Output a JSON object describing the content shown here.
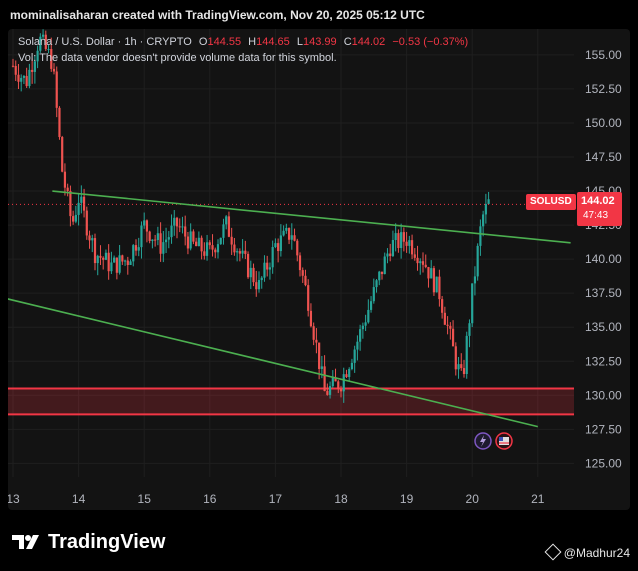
{
  "header": {
    "text": "mominalisaharan created with TradingView.com, Nov 20, 2025 05:12 UTC"
  },
  "legend": {
    "symbol": "Solana / U.S. Dollar · 1h · CRYPTO",
    "o_label": "O",
    "o_val": "144.55",
    "h_label": "H",
    "h_val": "144.65",
    "l_label": "L",
    "l_val": "143.99",
    "c_label": "C",
    "c_val": "144.02",
    "change": "−0.53 (−0.37%)",
    "volume_note": "Vol: The data vendor doesn't provide volume data for this symbol."
  },
  "price_label": {
    "symbol": "SOLUSD",
    "price": "144.02",
    "countdown": "47:43"
  },
  "brand": {
    "name": "TradingView"
  },
  "author": {
    "name": "@Madhur24"
  },
  "colors": {
    "up": "#26a69a",
    "down": "#ef5350",
    "trend": "#4caf50",
    "zone": "#f23645",
    "bg": "#131313",
    "grid": "#1f1f1f"
  },
  "chart_data": {
    "type": "candlestick",
    "symbol": "SOLUSD",
    "interval": "1h",
    "x_ticks": [
      "13",
      "14",
      "15",
      "16",
      "17",
      "18",
      "19",
      "20",
      "21"
    ],
    "y_ticks": [
      "155.00",
      "152.50",
      "150.00",
      "147.50",
      "145.00",
      "142.50",
      "140.00",
      "137.50",
      "135.00",
      "132.50",
      "130.00",
      "127.50",
      "125.00"
    ],
    "ylim": [
      124.0,
      156.9
    ],
    "xlim": [
      13.0,
      21.5
    ],
    "ohlc": {
      "open": 144.55,
      "high": 144.65,
      "low": 143.99,
      "close": 144.02
    },
    "last_price": 144.02,
    "approx_closes": [
      [
        13.0,
        154.2
      ],
      [
        13.2,
        153.0
      ],
      [
        13.4,
        156.2
      ],
      [
        13.6,
        154.5
      ],
      [
        13.75,
        146.5
      ],
      [
        13.9,
        142.5
      ],
      [
        14.0,
        144.5
      ],
      [
        14.25,
        140.5
      ],
      [
        14.5,
        139.5
      ],
      [
        14.75,
        140.0
      ],
      [
        15.0,
        142.5
      ],
      [
        15.25,
        141.0
      ],
      [
        15.5,
        142.5
      ],
      [
        15.75,
        141.0
      ],
      [
        16.0,
        140.5
      ],
      [
        16.25,
        142.5
      ],
      [
        16.5,
        140.0
      ],
      [
        16.75,
        138.0
      ],
      [
        17.0,
        141.0
      ],
      [
        17.25,
        142.0
      ],
      [
        17.5,
        137.0
      ],
      [
        17.75,
        130.2
      ],
      [
        18.0,
        131.0
      ],
      [
        18.25,
        134.0
      ],
      [
        18.5,
        137.5
      ],
      [
        18.75,
        141.0
      ],
      [
        19.0,
        141.5
      ],
      [
        19.25,
        140.0
      ],
      [
        19.5,
        137.5
      ],
      [
        19.75,
        132.5
      ],
      [
        19.85,
        131.0
      ],
      [
        20.0,
        137.5
      ],
      [
        20.15,
        143.0
      ],
      [
        20.25,
        144.1
      ]
    ],
    "annotations": {
      "upper_trendline": [
        [
          13.6,
          145.0
        ],
        [
          21.5,
          141.2
        ]
      ],
      "lower_trendline": [
        [
          12.9,
          137.1
        ],
        [
          21.0,
          127.7
        ]
      ],
      "support_zone": [
        128.6,
        130.5
      ]
    }
  }
}
